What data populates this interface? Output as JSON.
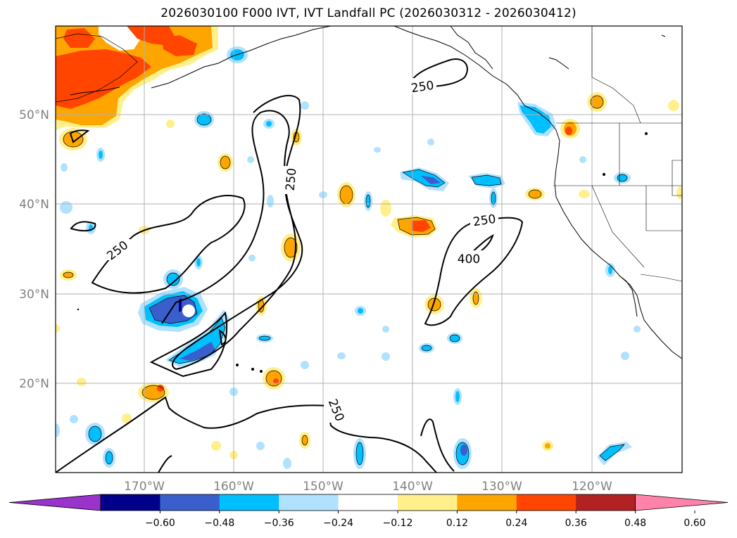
{
  "title": "2026030100 F000 IVT, IVT Landfall PC (2026030312 - 2026030412)",
  "lat_labels": [
    "50°N",
    "40°N",
    "30°N",
    "20°N"
  ],
  "lon_labels": [
    "170°W",
    "160°W",
    "150°W",
    "140°W",
    "130°W",
    "120°W"
  ],
  "colorbar": {
    "ticks": [
      "−0.60",
      "−0.48",
      "−0.36",
      "−0.24",
      "−0.12",
      "0.12",
      "0.24",
      "0.36",
      "0.48",
      "0.60"
    ],
    "colors": [
      "#9933cc",
      "#00008b",
      "#3a5fcd",
      "#00bfff",
      "#b0e2ff",
      "#ffffff",
      "#fff08c",
      "#ffa500",
      "#ff4500",
      "#b22222",
      "#ff82ab"
    ]
  },
  "contour_labels": {
    "a": "250",
    "b": "250",
    "c": "250",
    "d": "250",
    "e": "400",
    "f": "250"
  },
  "colors": {
    "land": "#000000",
    "grid": "#b0b0b0"
  }
}
